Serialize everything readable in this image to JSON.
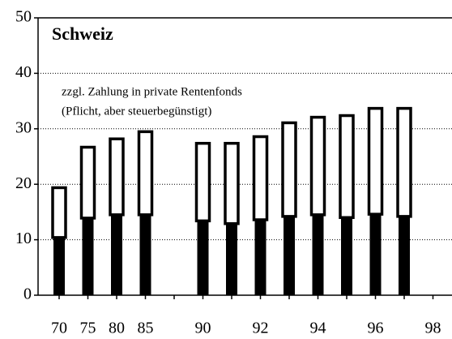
{
  "chart_data": {
    "type": "bar",
    "stacked": true,
    "title": "Schweiz",
    "annotation": [
      "zzgl. Zahlung in private Rentenfonds",
      "(Pflicht, aber steuerbegünstigt)"
    ],
    "categories": [
      "70",
      "75",
      "80",
      "85",
      null,
      "90",
      null,
      "92",
      null,
      "94",
      null,
      "96",
      null,
      "98"
    ],
    "series": [
      {
        "color": "#000000",
        "values": [
          10.4,
          13.9,
          14.5,
          14.5,
          null,
          13.4,
          12.9,
          13.6,
          14.2,
          14.5,
          14.0,
          14.6,
          14.2,
          null
        ]
      },
      {
        "color": "#ffffff",
        "values": [
          9.2,
          13.0,
          13.9,
          15.2,
          null,
          14.2,
          14.7,
          15.2,
          17.1,
          17.8,
          18.6,
          19.3,
          19.7,
          null
        ]
      }
    ],
    "ylim": [
      0,
      50
    ],
    "yticks": [
      0,
      10,
      20,
      30,
      40,
      50
    ],
    "grid": true
  }
}
